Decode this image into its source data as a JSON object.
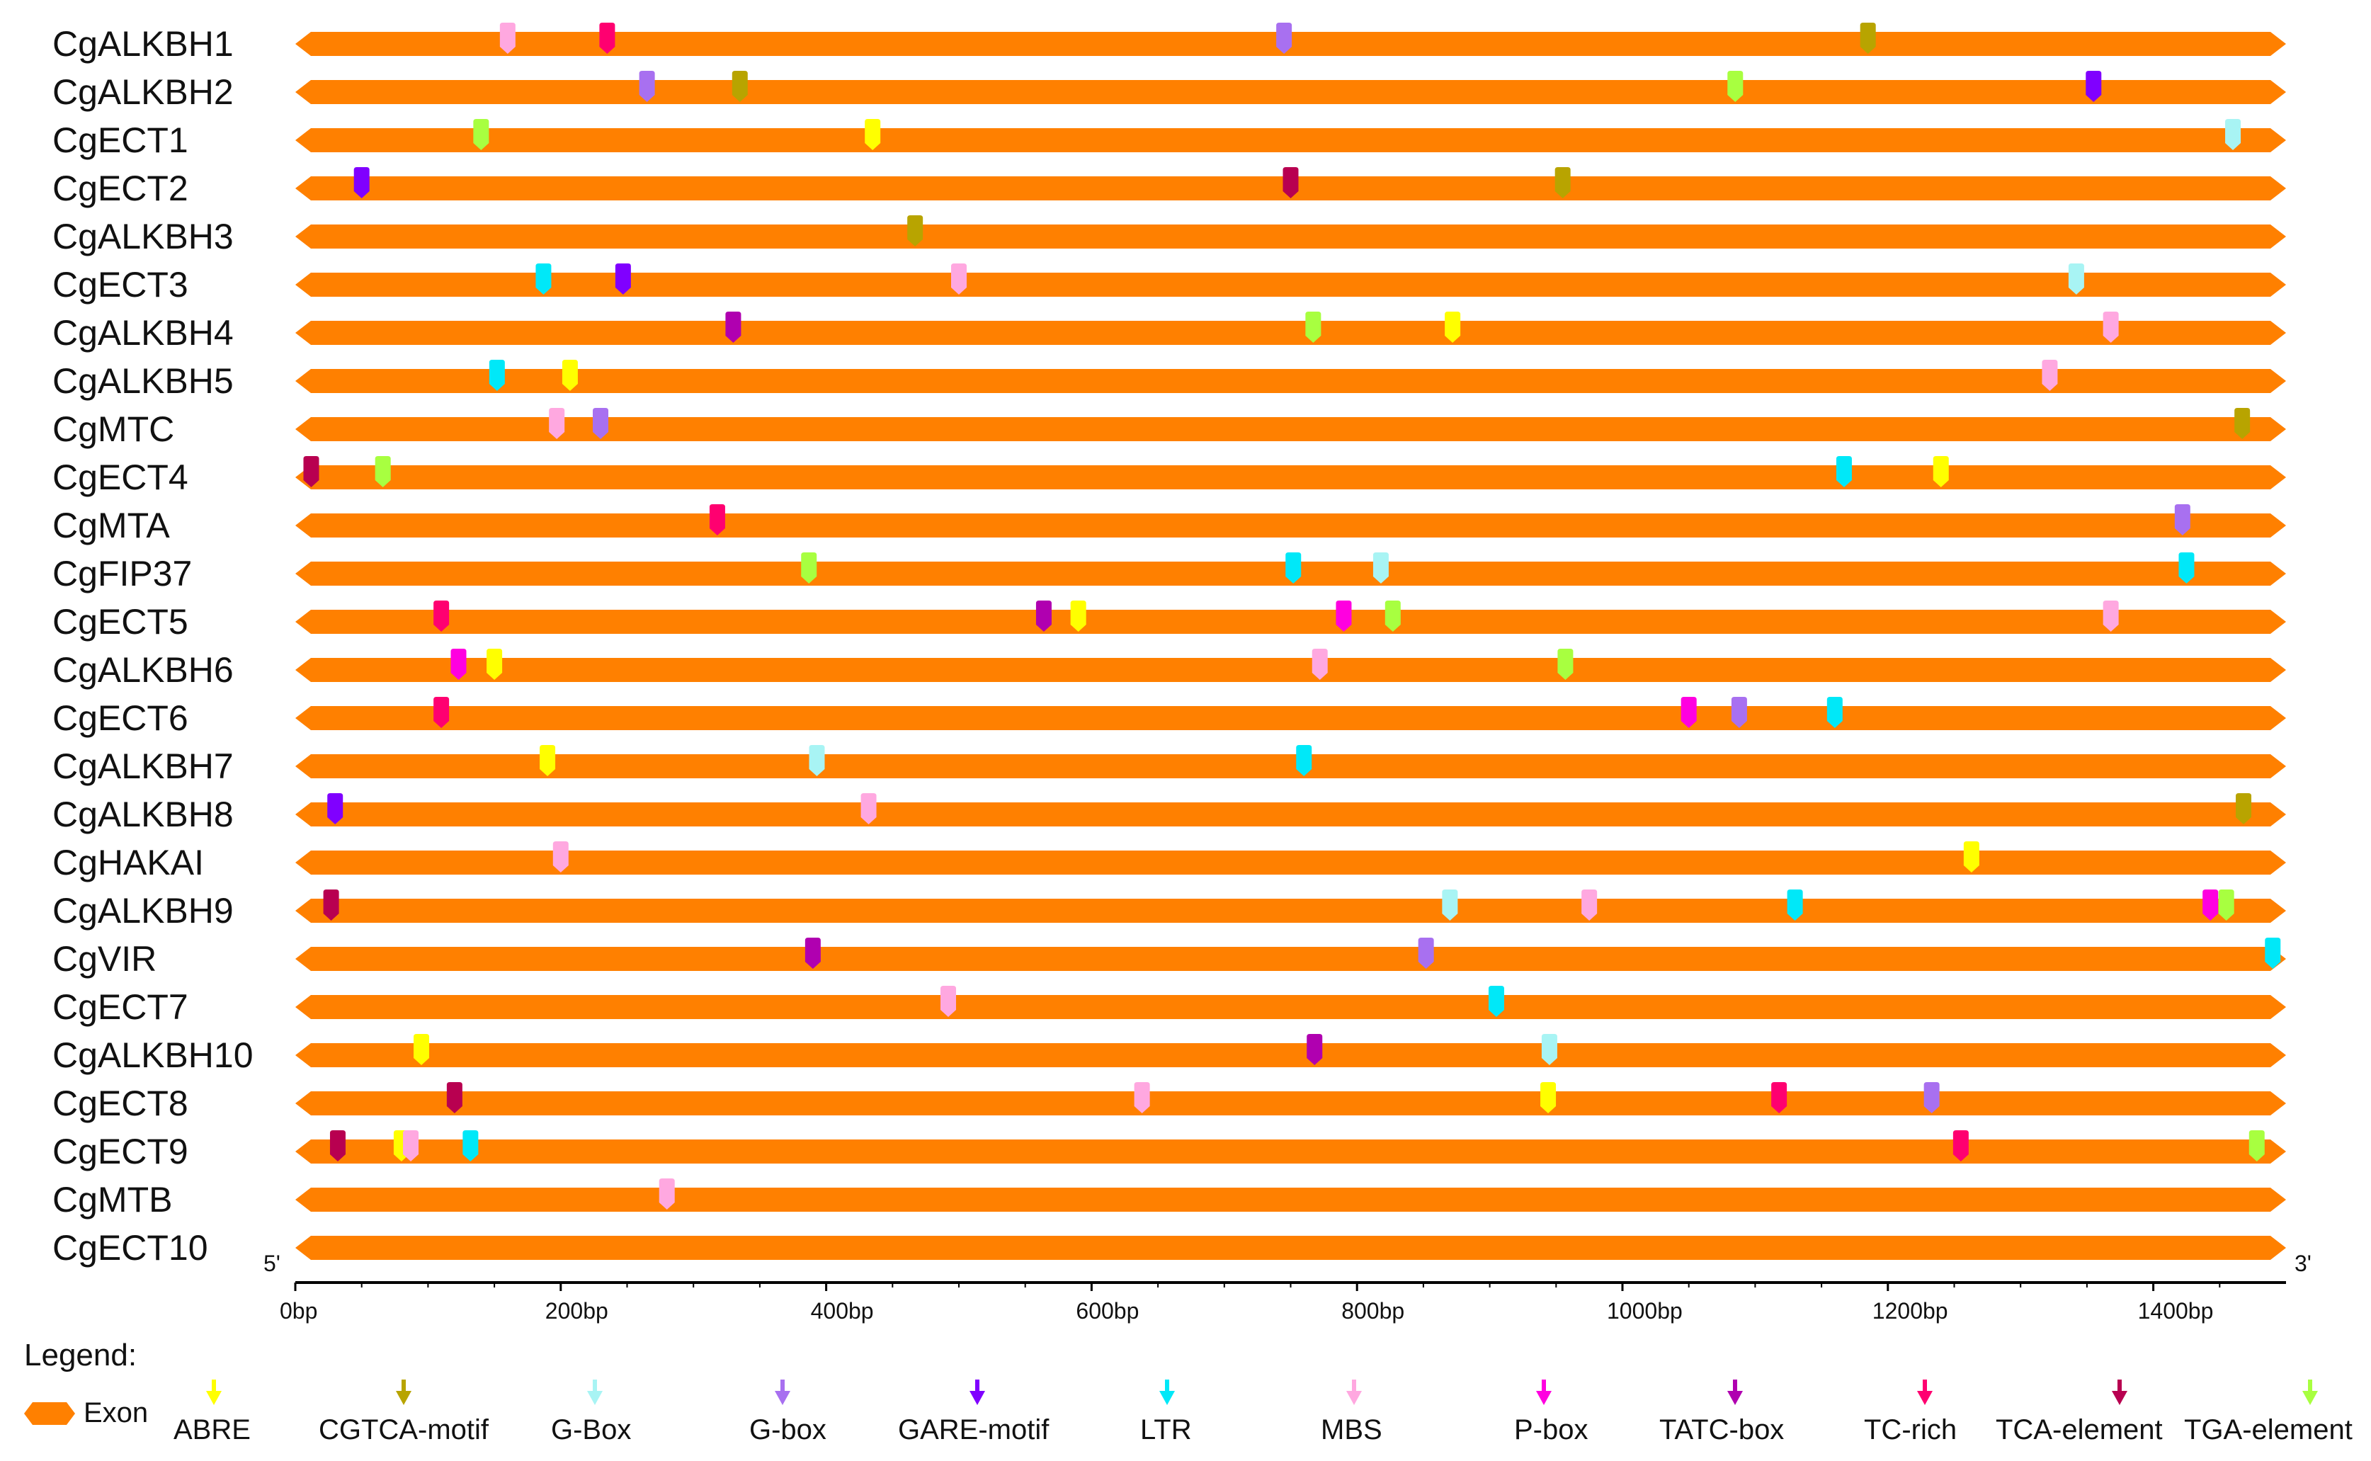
{
  "chart_data": {
    "type": "gene-structure",
    "title": "",
    "xlabel": "",
    "five_prime_label": "5'",
    "three_prime_label": "3'",
    "xlim": [
      0,
      1500
    ],
    "xticks": [
      0,
      200,
      400,
      600,
      800,
      1000,
      1200,
      1400
    ],
    "xtick_labels": [
      "0bp",
      "200bp",
      "400bp",
      "600bp",
      "800bp",
      "1000bp",
      "1200bp",
      "1400bp"
    ],
    "legend_title": "Legend:",
    "exon_label": "Exon",
    "exon_color": "#FF8000",
    "elements": [
      {
        "name": "ABRE",
        "color": "#FFFF00"
      },
      {
        "name": "CGTCA-motif",
        "color": "#B8A400"
      },
      {
        "name": "G-Box",
        "color": "#A8F4F4"
      },
      {
        "name": "G-box",
        "color": "#A870F0"
      },
      {
        "name": "GARE-motif",
        "color": "#8000FF"
      },
      {
        "name": "LTR",
        "color": "#00E8F8"
      },
      {
        "name": "MBS",
        "color": "#FFA8E0"
      },
      {
        "name": "P-box",
        "color": "#FF00E0"
      },
      {
        "name": "TATC-box",
        "color": "#B000B0"
      },
      {
        "name": "TC-rich",
        "color": "#FF0070"
      },
      {
        "name": "TCA-element",
        "color": "#B80050"
      },
      {
        "name": "TGA-element",
        "color": "#A8FF40"
      }
    ],
    "genes": [
      {
        "name": "CgALKBH1",
        "motifs": [
          {
            "pos": 160,
            "el": "MBS"
          },
          {
            "pos": 235,
            "el": "TC-rich"
          },
          {
            "pos": 745,
            "el": "G-box"
          },
          {
            "pos": 1185,
            "el": "CGTCA-motif"
          }
        ]
      },
      {
        "name": "CgALKBH2",
        "motifs": [
          {
            "pos": 265,
            "el": "G-box"
          },
          {
            "pos": 335,
            "el": "CGTCA-motif"
          },
          {
            "pos": 1085,
            "el": "TGA-element"
          },
          {
            "pos": 1355,
            "el": "GARE-motif"
          }
        ]
      },
      {
        "name": "CgECT1",
        "motifs": [
          {
            "pos": 140,
            "el": "TGA-element"
          },
          {
            "pos": 435,
            "el": "ABRE"
          },
          {
            "pos": 1460,
            "el": "G-Box"
          }
        ]
      },
      {
        "name": "CgECT2",
        "motifs": [
          {
            "pos": 50,
            "el": "GARE-motif"
          },
          {
            "pos": 750,
            "el": "TCA-element"
          },
          {
            "pos": 955,
            "el": "CGTCA-motif"
          }
        ]
      },
      {
        "name": "CgALKBH3",
        "motifs": [
          {
            "pos": 467,
            "el": "CGTCA-motif"
          }
        ]
      },
      {
        "name": "CgECT3",
        "motifs": [
          {
            "pos": 187,
            "el": "LTR"
          },
          {
            "pos": 247,
            "el": "GARE-motif"
          },
          {
            "pos": 500,
            "el": "MBS"
          },
          {
            "pos": 1342,
            "el": "G-Box"
          }
        ]
      },
      {
        "name": "CgALKBH4",
        "motifs": [
          {
            "pos": 330,
            "el": "TATC-box"
          },
          {
            "pos": 767,
            "el": "TGA-element"
          },
          {
            "pos": 872,
            "el": "ABRE"
          },
          {
            "pos": 1368,
            "el": "MBS"
          }
        ]
      },
      {
        "name": "CgALKBH5",
        "motifs": [
          {
            "pos": 152,
            "el": "LTR"
          },
          {
            "pos": 207,
            "el": "ABRE"
          },
          {
            "pos": 1322,
            "el": "MBS"
          }
        ]
      },
      {
        "name": "CgMTC",
        "motifs": [
          {
            "pos": 197,
            "el": "MBS"
          },
          {
            "pos": 230,
            "el": "G-box"
          },
          {
            "pos": 1467,
            "el": "CGTCA-motif"
          }
        ]
      },
      {
        "name": "CgECT4",
        "motifs": [
          {
            "pos": 12,
            "el": "TCA-element"
          },
          {
            "pos": 66,
            "el": "TGA-element"
          },
          {
            "pos": 1167,
            "el": "LTR"
          },
          {
            "pos": 1240,
            "el": "ABRE"
          }
        ]
      },
      {
        "name": "CgMTA",
        "motifs": [
          {
            "pos": 318,
            "el": "TC-rich"
          },
          {
            "pos": 1422,
            "el": "G-box"
          }
        ]
      },
      {
        "name": "CgFIP37",
        "motifs": [
          {
            "pos": 387,
            "el": "TGA-element"
          },
          {
            "pos": 752,
            "el": "LTR"
          },
          {
            "pos": 818,
            "el": "G-Box"
          },
          {
            "pos": 1425,
            "el": "LTR"
          }
        ]
      },
      {
        "name": "CgECT5",
        "motifs": [
          {
            "pos": 110,
            "el": "TC-rich"
          },
          {
            "pos": 564,
            "el": "TATC-box"
          },
          {
            "pos": 590,
            "el": "ABRE"
          },
          {
            "pos": 790,
            "el": "P-box"
          },
          {
            "pos": 827,
            "el": "TGA-element"
          },
          {
            "pos": 1368,
            "el": "MBS"
          }
        ]
      },
      {
        "name": "CgALKBH6",
        "motifs": [
          {
            "pos": 123,
            "el": "P-box"
          },
          {
            "pos": 150,
            "el": "ABRE"
          },
          {
            "pos": 772,
            "el": "MBS"
          },
          {
            "pos": 957,
            "el": "TGA-element"
          }
        ]
      },
      {
        "name": "CgECT6",
        "motifs": [
          {
            "pos": 110,
            "el": "TC-rich"
          },
          {
            "pos": 1050,
            "el": "P-box"
          },
          {
            "pos": 1088,
            "el": "G-box"
          },
          {
            "pos": 1160,
            "el": "LTR"
          }
        ]
      },
      {
        "name": "CgALKBH7",
        "motifs": [
          {
            "pos": 190,
            "el": "ABRE"
          },
          {
            "pos": 393,
            "el": "G-Box"
          },
          {
            "pos": 760,
            "el": "LTR"
          }
        ]
      },
      {
        "name": "CgALKBH8",
        "motifs": [
          {
            "pos": 30,
            "el": "GARE-motif"
          },
          {
            "pos": 432,
            "el": "MBS"
          },
          {
            "pos": 1468,
            "el": "CGTCA-motif"
          }
        ]
      },
      {
        "name": "CgHAKAI",
        "motifs": [
          {
            "pos": 200,
            "el": "MBS"
          },
          {
            "pos": 1263,
            "el": "ABRE"
          }
        ]
      },
      {
        "name": "CgALKBH9",
        "motifs": [
          {
            "pos": 27,
            "el": "TCA-element"
          },
          {
            "pos": 870,
            "el": "G-Box"
          },
          {
            "pos": 975,
            "el": "MBS"
          },
          {
            "pos": 1130,
            "el": "LTR"
          },
          {
            "pos": 1443,
            "el": "P-box"
          },
          {
            "pos": 1455,
            "el": "TGA-element"
          }
        ]
      },
      {
        "name": "CgVIR",
        "motifs": [
          {
            "pos": 390,
            "el": "TATC-box"
          },
          {
            "pos": 852,
            "el": "G-box"
          },
          {
            "pos": 1490,
            "el": "LTR"
          }
        ]
      },
      {
        "name": "CgECT7",
        "motifs": [
          {
            "pos": 492,
            "el": "MBS"
          },
          {
            "pos": 905,
            "el": "LTR"
          }
        ]
      },
      {
        "name": "CgALKBH10",
        "motifs": [
          {
            "pos": 95,
            "el": "ABRE"
          },
          {
            "pos": 768,
            "el": "TATC-box"
          },
          {
            "pos": 945,
            "el": "G-Box"
          }
        ]
      },
      {
        "name": "CgECT8",
        "motifs": [
          {
            "pos": 120,
            "el": "TCA-element"
          },
          {
            "pos": 638,
            "el": "MBS"
          },
          {
            "pos": 944,
            "el": "ABRE"
          },
          {
            "pos": 1118,
            "el": "TC-rich"
          },
          {
            "pos": 1233,
            "el": "G-box"
          }
        ]
      },
      {
        "name": "CgECT9",
        "motifs": [
          {
            "pos": 32,
            "el": "TCA-element"
          },
          {
            "pos": 80,
            "el": "ABRE"
          },
          {
            "pos": 87,
            "el": "MBS"
          },
          {
            "pos": 132,
            "el": "LTR"
          },
          {
            "pos": 1255,
            "el": "TC-rich"
          },
          {
            "pos": 1478,
            "el": "TGA-element"
          }
        ]
      },
      {
        "name": "CgMTB",
        "motifs": [
          {
            "pos": 280,
            "el": "MBS"
          }
        ]
      },
      {
        "name": "CgECT10",
        "motifs": []
      }
    ]
  }
}
